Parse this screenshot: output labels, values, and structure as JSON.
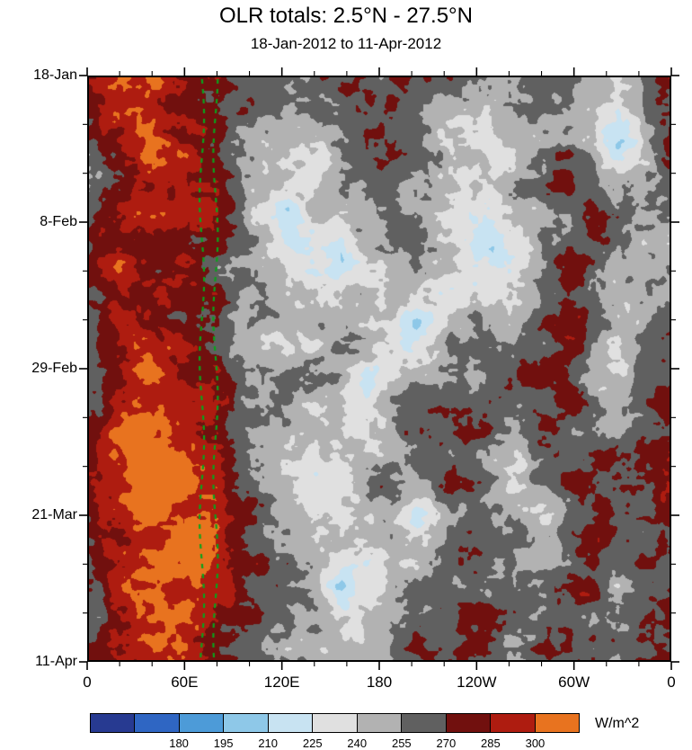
{
  "chart_data": {
    "type": "heatmap",
    "title": "OLR totals: 2.5°N - 27.5°N",
    "subtitle": "18-Jan-2012 to 11-Apr-2012",
    "x_axis": {
      "tick_labels": [
        "0",
        "60E",
        "120E",
        "180",
        "120W",
        "60W",
        "0"
      ],
      "range_deg": [
        0,
        360
      ],
      "major_tick_deg": 60,
      "minor_tick_deg": 20
    },
    "y_axis": {
      "tick_labels": [
        "18-Jan",
        "8-Feb",
        "29-Feb",
        "21-Mar",
        "11-Apr"
      ],
      "range_days": [
        0,
        84
      ],
      "major_tick_days": 21,
      "minor_tick_days": 7
    },
    "colorbar": {
      "unit": "W/m^2",
      "tick_labels": [
        "180",
        "195",
        "210",
        "225",
        "240",
        "255",
        "270",
        "285",
        "300"
      ],
      "edges": [
        165,
        180,
        195,
        210,
        225,
        240,
        255,
        270,
        285,
        300
      ],
      "colors": [
        "#273a91",
        "#2f66c3",
        "#4d9bd8",
        "#8ec8e8",
        "#c8e3f2",
        "#e0e0e0",
        "#b2b2b2",
        "#606060",
        "#71100e",
        "#ae1c10",
        "#e8731f"
      ]
    },
    "annotations": [
      {
        "type": "dashed-vline",
        "lon": 70,
        "color": "#0aa31c"
      },
      {
        "type": "dashed-vline",
        "lon": 78.5,
        "color": "#0aa31c"
      }
    ],
    "grid": {
      "lon_min": 0,
      "lon_max": 360,
      "rows_time_top_to_bottom": true,
      "values": [
        [
          272,
          288,
          296,
          290,
          282,
          278,
          258,
          253,
          250,
          256,
          263,
          271,
          273,
          265,
          256,
          251,
          253,
          249,
          255,
          261,
          251,
          245,
          263,
          273
        ],
        [
          268,
          292,
          301,
          288,
          285,
          280,
          262,
          251,
          245,
          253,
          267,
          275,
          269,
          258,
          253,
          247,
          241,
          251,
          257,
          253,
          237,
          221,
          257,
          276
        ],
        [
          262,
          285,
          298,
          292,
          288,
          276,
          256,
          247,
          241,
          249,
          259,
          269,
          263,
          253,
          249,
          239,
          233,
          245,
          253,
          259,
          245,
          217,
          251,
          271
        ],
        [
          258,
          280,
          292,
          296,
          290,
          282,
          260,
          249,
          237,
          231,
          247,
          257,
          267,
          261,
          251,
          243,
          237,
          249,
          257,
          263,
          257,
          239,
          247,
          263
        ],
        [
          266,
          286,
          290,
          294,
          286,
          278,
          257,
          241,
          216,
          238,
          251,
          259,
          263,
          257,
          247,
          241,
          235,
          247,
          255,
          263,
          269,
          253,
          243,
          259
        ],
        [
          270,
          288,
          284,
          290,
          282,
          274,
          253,
          239,
          223,
          241,
          215,
          245,
          255,
          251,
          241,
          235,
          211,
          239,
          251,
          267,
          273,
          257,
          239,
          253
        ],
        [
          274,
          290,
          286,
          284,
          278,
          270,
          249,
          243,
          237,
          233,
          227,
          241,
          251,
          247,
          237,
          231,
          237,
          245,
          257,
          271,
          265,
          249,
          245,
          257
        ],
        [
          270,
          285,
          292,
          288,
          280,
          272,
          255,
          249,
          245,
          241,
          247,
          253,
          247,
          216,
          239,
          245,
          251,
          257,
          263,
          275,
          259,
          241,
          253,
          263
        ],
        [
          264,
          280,
          296,
          292,
          286,
          278,
          258,
          251,
          247,
          253,
          259,
          251,
          241,
          231,
          245,
          253,
          259,
          265,
          271,
          279,
          253,
          237,
          249,
          267
        ],
        [
          268,
          284,
          300,
          296,
          290,
          282,
          262,
          255,
          251,
          257,
          251,
          214,
          247,
          253,
          257,
          261,
          267,
          273,
          277,
          271,
          249,
          243,
          255,
          271
        ],
        [
          272,
          290,
          305,
          300,
          292,
          284,
          266,
          257,
          249,
          245,
          253,
          241,
          251,
          259,
          263,
          267,
          259,
          251,
          263,
          275,
          261,
          251,
          259,
          275
        ],
        [
          276,
          295,
          308,
          304,
          296,
          288,
          268,
          259,
          245,
          239,
          247,
          253,
          257,
          263,
          269,
          273,
          253,
          245,
          257,
          269,
          273,
          263,
          267,
          279
        ],
        [
          272,
          292,
          310,
          306,
          300,
          294,
          270,
          261,
          251,
          216,
          245,
          255,
          261,
          257,
          265,
          271,
          249,
          241,
          251,
          263,
          277,
          271,
          273,
          281
        ],
        [
          268,
          288,
          304,
          308,
          302,
          296,
          272,
          263,
          255,
          249,
          241,
          247,
          255,
          213,
          251,
          263,
          257,
          251,
          245,
          257,
          271,
          267,
          269,
          277
        ],
        [
          264,
          284,
          298,
          302,
          306,
          298,
          274,
          265,
          259,
          253,
          245,
          239,
          251,
          247,
          255,
          267,
          263,
          257,
          251,
          263,
          275,
          259,
          263,
          273
        ],
        [
          260,
          280,
          292,
          296,
          300,
          294,
          276,
          267,
          261,
          255,
          213,
          243,
          253,
          251,
          259,
          269,
          271,
          263,
          257,
          269,
          279,
          253,
          257,
          269
        ],
        [
          262,
          282,
          290,
          294,
          296,
          290,
          272,
          263,
          257,
          251,
          247,
          251,
          257,
          261,
          265,
          271,
          267,
          259,
          263,
          273,
          269,
          257,
          261,
          271
        ],
        [
          266,
          284,
          288,
          292,
          290,
          286,
          268,
          259,
          253,
          257,
          253,
          257,
          263,
          267,
          269,
          273,
          263,
          255,
          267,
          275,
          263,
          253,
          265,
          273
        ]
      ]
    }
  }
}
